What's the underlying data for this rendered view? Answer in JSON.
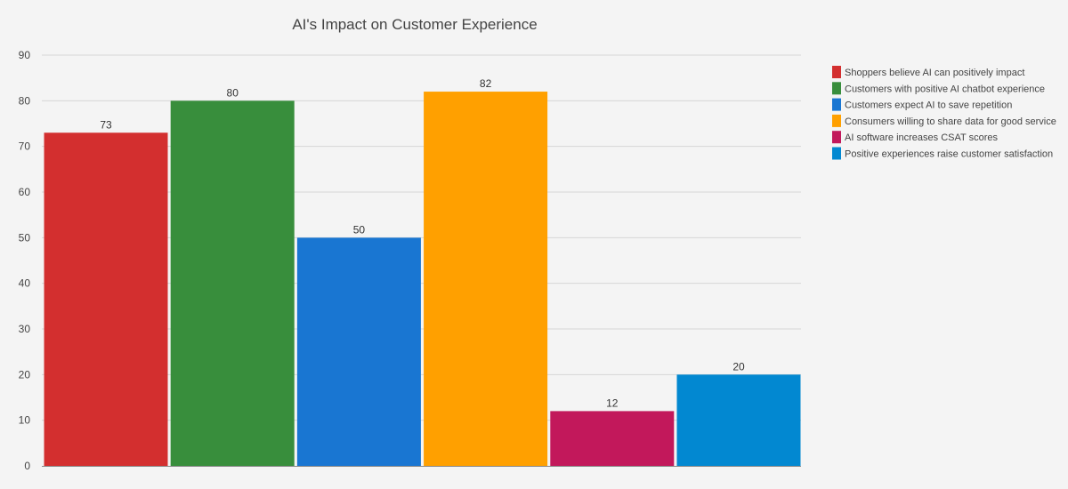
{
  "chart_data": {
    "type": "bar",
    "title": "AI's Impact on Customer Experience",
    "xlabel": "",
    "ylabel": "",
    "ylim": [
      0,
      90
    ],
    "yticks": [
      0,
      10,
      20,
      30,
      40,
      50,
      60,
      70,
      80,
      90
    ],
    "grid": true,
    "legend_position": "right",
    "series": [
      {
        "name": "Shoppers believe AI can positively impact",
        "value": 73,
        "color": "#d32f2f"
      },
      {
        "name": "Customers with positive AI chatbot experience",
        "value": 80,
        "color": "#388e3c"
      },
      {
        "name": "Customers expect AI to save repetition",
        "value": 50,
        "color": "#1976d2"
      },
      {
        "name": "Consumers willing to share data for good service",
        "value": 82,
        "color": "#ffa000"
      },
      {
        "name": "AI software increases CSAT scores",
        "value": 12,
        "color": "#c2185b"
      },
      {
        "name": "Positive experiences raise customer satisfaction",
        "value": 20,
        "color": "#0288d1"
      }
    ]
  }
}
